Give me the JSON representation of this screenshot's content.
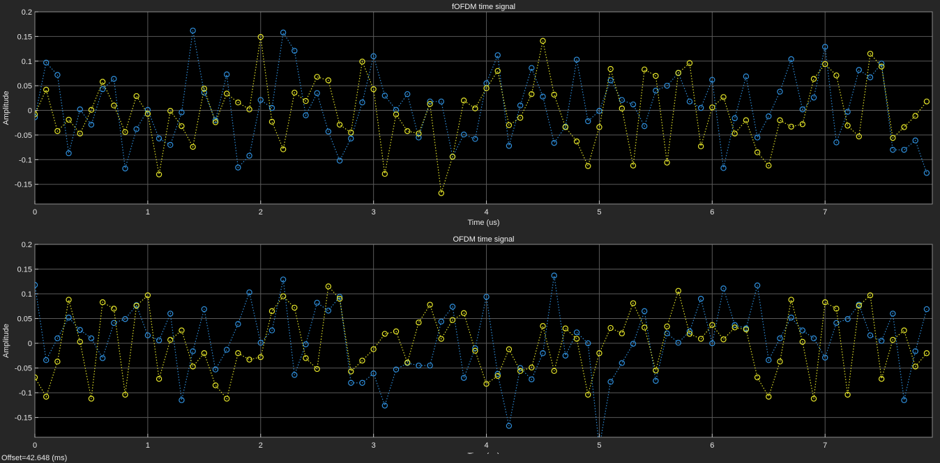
{
  "colors": {
    "background": "#262626",
    "plot_area": "#000000",
    "grid": "#5a5a5a",
    "text": "#e6e6e6",
    "series_blue": "#2f8fdc",
    "series_yellow": "#e6e62a"
  },
  "status": {
    "offset_text": "Offset=42.648 (ms)"
  },
  "chart_data": [
    {
      "type": "line",
      "title": "fOFDM time signal",
      "xlabel": "Time (us)",
      "ylabel": "Amplitude",
      "xlim": [
        0,
        7.95
      ],
      "ylim": [
        -0.19,
        0.2
      ],
      "xticks": [
        0,
        1,
        2,
        3,
        4,
        5,
        6,
        7
      ],
      "yticks": [
        -0.15,
        -0.1,
        -0.05,
        0,
        0.05,
        0.1,
        0.15,
        0.2
      ],
      "ytick_labels": [
        "-0.15",
        "-0.1",
        "-0.05",
        "0",
        "0.05",
        "0.1",
        "0.15",
        "0.2"
      ],
      "grid": true,
      "marker": "circle",
      "line_style": "dotted",
      "x": [
        0,
        0.1,
        0.2,
        0.3,
        0.4,
        0.5,
        0.6,
        0.7,
        0.8,
        0.9,
        1.0,
        1.1,
        1.2,
        1.3,
        1.4,
        1.5,
        1.6,
        1.7,
        1.8,
        1.9,
        2.0,
        2.1,
        2.2,
        2.3,
        2.4,
        2.5,
        2.6,
        2.7,
        2.8,
        2.9,
        3.0,
        3.1,
        3.2,
        3.3,
        3.4,
        3.5,
        3.6,
        3.7,
        3.8,
        3.9,
        4.0,
        4.1,
        4.2,
        4.3,
        4.4,
        4.5,
        4.6,
        4.7,
        4.8,
        4.9,
        5.0,
        5.1,
        5.2,
        5.3,
        5.4,
        5.5,
        5.6,
        5.7,
        5.8,
        5.9,
        6.0,
        6.1,
        6.2,
        6.3,
        6.4,
        6.5,
        6.6,
        6.7,
        6.8,
        6.9,
        7.0,
        7.1,
        7.2,
        7.3,
        7.4,
        7.5,
        7.6,
        7.7,
        7.8,
        7.9
      ],
      "series": [
        {
          "color": "#2f8fdc",
          "values": [
            -0.014,
            0.097,
            0.072,
            -0.087,
            0.002,
            -0.029,
            0.043,
            0.064,
            -0.118,
            -0.038,
            0.001,
            -0.057,
            -0.07,
            -0.004,
            0.162,
            0.036,
            -0.02,
            0.073,
            -0.116,
            -0.092,
            0.021,
            0.005,
            0.158,
            0.121,
            -0.01,
            0.035,
            -0.043,
            -0.102,
            -0.057,
            0.016,
            0.11,
            0.03,
            0.001,
            0.033,
            -0.055,
            0.018,
            0.018,
            -0.094,
            -0.049,
            -0.058,
            0.055,
            0.112,
            -0.072,
            0.01,
            0.086,
            0.028,
            -0.066,
            -0.033,
            0.103,
            -0.022,
            -0.001,
            0.061,
            0.021,
            0.012,
            -0.032,
            0.04,
            0.05,
            0.076,
            0.018,
            0.005,
            0.062,
            -0.117,
            -0.016,
            0.069,
            -0.055,
            -0.012,
            0.038,
            0.104,
            0.002,
            0.026,
            0.129,
            -0.065,
            -0.003,
            0.082,
            0.067,
            0.095,
            -0.08,
            -0.08,
            -0.061,
            -0.127
          ]
        },
        {
          "color": "#e6e62a",
          "values": [
            -0.008,
            0.042,
            -0.042,
            -0.019,
            -0.047,
            0.001,
            0.058,
            0.01,
            -0.044,
            0.029,
            -0.007,
            -0.13,
            -0.001,
            -0.032,
            -0.074,
            0.044,
            -0.024,
            0.034,
            0.016,
            0.002,
            0.149,
            -0.023,
            -0.079,
            0.036,
            0.019,
            0.068,
            0.061,
            -0.029,
            -0.045,
            0.099,
            0.043,
            -0.129,
            -0.008,
            -0.042,
            -0.047,
            0.013,
            -0.168,
            -0.094,
            0.02,
            0.004,
            0.045,
            0.08,
            -0.03,
            -0.015,
            0.033,
            0.141,
            0.032,
            -0.034,
            -0.063,
            -0.113,
            -0.034,
            0.084,
            0.004,
            -0.112,
            0.083,
            0.07,
            -0.106,
            0.076,
            0.096,
            -0.073,
            0.006,
            0.027,
            -0.047,
            -0.02,
            -0.085,
            -0.112,
            -0.02,
            -0.033,
            -0.028,
            0.064,
            0.094,
            0.071,
            -0.031,
            -0.053,
            0.115,
            0.089,
            -0.056,
            -0.034,
            -0.011,
            0.018
          ]
        }
      ]
    },
    {
      "type": "line",
      "title": "OFDM time signal",
      "xlabel": "Time (us)",
      "ylabel": "Amplitude",
      "xlim": [
        0,
        7.95
      ],
      "ylim": [
        -0.19,
        0.2
      ],
      "xticks": [
        0,
        1,
        2,
        3,
        4,
        5,
        6,
        7
      ],
      "yticks": [
        -0.15,
        -0.1,
        -0.05,
        0,
        0.05,
        0.1,
        0.15,
        0.2
      ],
      "ytick_labels": [
        "-0.15",
        "-0.1",
        "-0.05",
        "0",
        "0.05",
        "0.1",
        "0.15",
        "0.2"
      ],
      "grid": true,
      "marker": "circle",
      "line_style": "dotted",
      "x": [
        0,
        0.1,
        0.2,
        0.3,
        0.4,
        0.5,
        0.6,
        0.7,
        0.8,
        0.9,
        1.0,
        1.1,
        1.2,
        1.3,
        1.4,
        1.5,
        1.6,
        1.7,
        1.8,
        1.9,
        2.0,
        2.1,
        2.2,
        2.3,
        2.4,
        2.5,
        2.6,
        2.7,
        2.8,
        2.9,
        3.0,
        3.1,
        3.2,
        3.3,
        3.4,
        3.5,
        3.6,
        3.7,
        3.8,
        3.9,
        4.0,
        4.1,
        4.2,
        4.3,
        4.4,
        4.5,
        4.6,
        4.7,
        4.8,
        4.9,
        5.0,
        5.1,
        5.2,
        5.3,
        5.4,
        5.5,
        5.6,
        5.7,
        5.8,
        5.9,
        6.0,
        6.1,
        6.2,
        6.3,
        6.4,
        6.5,
        6.6,
        6.7,
        6.8,
        6.9,
        7.0,
        7.1,
        7.2,
        7.3,
        7.4,
        7.5,
        7.6,
        7.7,
        7.8,
        7.9
      ],
      "series": [
        {
          "color": "#2f8fdc",
          "values": [
            0.118,
            -0.034,
            0.01,
            0.052,
            0.027,
            0.01,
            -0.03,
            0.041,
            0.049,
            0.077,
            0.016,
            0.006,
            0.06,
            -0.115,
            -0.016,
            0.069,
            -0.053,
            -0.013,
            0.039,
            0.103,
            0.001,
            0.026,
            0.129,
            -0.064,
            -0.002,
            0.082,
            0.066,
            0.094,
            -0.08,
            -0.08,
            -0.061,
            -0.126,
            -0.053,
            -0.04,
            -0.045,
            -0.045,
            0.044,
            0.074,
            -0.07,
            -0.01,
            0.094,
            -0.062,
            -0.167,
            -0.05,
            -0.073,
            -0.02,
            0.137,
            -0.025,
            0.022,
            0.0,
            -0.21,
            -0.078,
            -0.04,
            -0.001,
            0.065,
            -0.076,
            0.02,
            0.001,
            0.024,
            0.09,
            0.0,
            0.111,
            0.037,
            0.03,
            0.117,
            -0.034,
            0.01,
            0.052,
            0.026,
            0.01,
            -0.029,
            0.041,
            0.049,
            0.078,
            0.016,
            0.005,
            0.06,
            -0.115,
            -0.016,
            0.069
          ]
        },
        {
          "color": "#e6e62a",
          "values": [
            -0.069,
            -0.108,
            -0.037,
            0.088,
            0.003,
            -0.112,
            0.083,
            0.07,
            -0.104,
            0.076,
            0.097,
            -0.072,
            0.007,
            0.026,
            -0.047,
            -0.02,
            -0.085,
            -0.112,
            -0.02,
            -0.033,
            -0.028,
            0.065,
            0.095,
            0.072,
            -0.03,
            -0.052,
            0.115,
            0.09,
            -0.057,
            -0.035,
            -0.012,
            0.019,
            0.024,
            -0.039,
            0.042,
            0.078,
            0.009,
            0.047,
            0.061,
            -0.015,
            -0.082,
            -0.066,
            -0.012,
            -0.056,
            -0.049,
            0.035,
            -0.056,
            0.03,
            0.009,
            -0.104,
            -0.02,
            0.031,
            0.02,
            0.081,
            0.032,
            -0.055,
            0.034,
            0.106,
            0.019,
            0.009,
            0.037,
            0.008,
            0.032,
            0.028,
            -0.069,
            -0.108,
            -0.037,
            0.088,
            0.003,
            -0.112,
            0.083,
            0.07,
            -0.104,
            0.076,
            0.097,
            -0.072,
            0.007,
            0.026,
            -0.047,
            -0.02
          ]
        }
      ]
    }
  ]
}
